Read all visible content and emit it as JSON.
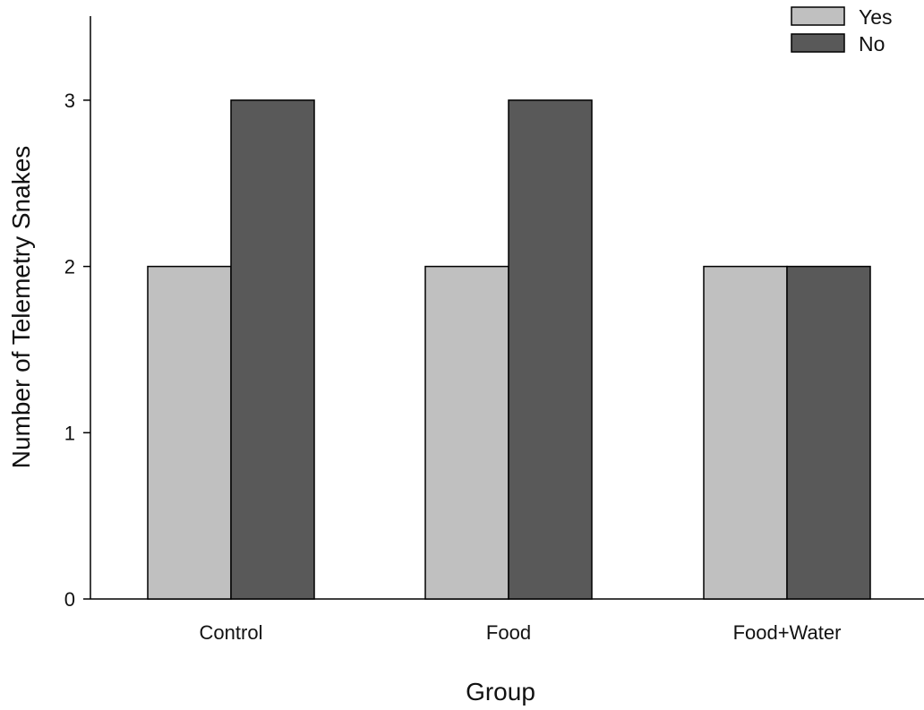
{
  "chart_data": {
    "type": "bar",
    "categories": [
      "Control",
      "Food",
      "Food+Water"
    ],
    "series": [
      {
        "name": "Yes",
        "values": [
          2,
          2,
          2
        ],
        "color": "#c0c0c0"
      },
      {
        "name": "No",
        "values": [
          3,
          3,
          2
        ],
        "color": "#595959"
      }
    ],
    "xlabel": "Group",
    "ylabel": "Number of Telemetry Snakes",
    "ylim": [
      0,
      3.5
    ],
    "yticks": [
      0,
      1,
      2,
      3
    ],
    "grid": false,
    "legend_position": "top-right"
  }
}
